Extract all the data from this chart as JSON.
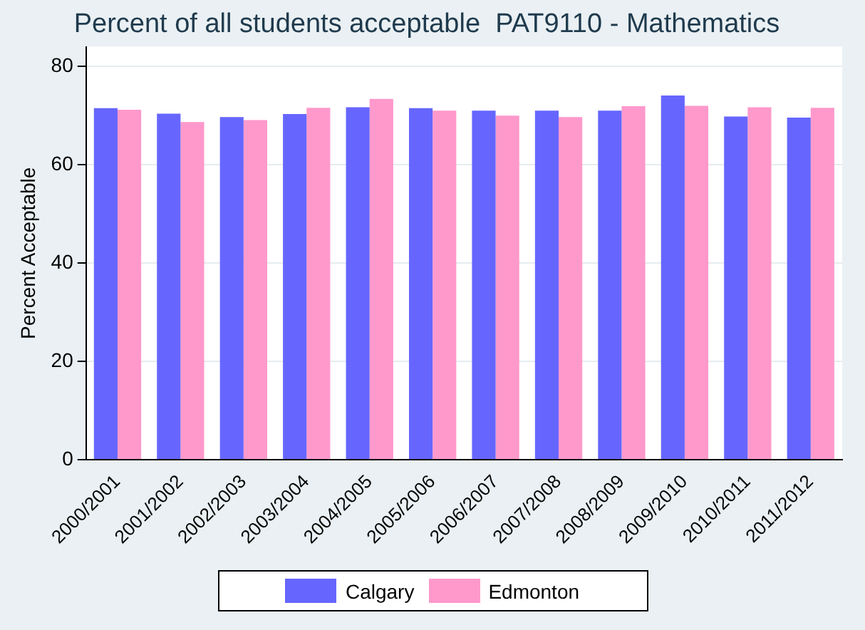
{
  "chart_data": {
    "type": "bar",
    "title": "Percent of all students acceptable  PAT9110 - Mathematics",
    "ylabel": "Percent Acceptable",
    "categories": [
      "2000/2001",
      "2001/2002",
      "2002/2003",
      "2003/2004",
      "2004/2005",
      "2005/2006",
      "2006/2007",
      "2007/2008",
      "2008/2009",
      "2009/2010",
      "2010/2011",
      "2011/2012"
    ],
    "series": [
      {
        "name": "Calgary",
        "color": "#6666ff",
        "values": [
          71.5,
          70.4,
          69.7,
          70.3,
          71.7,
          71.5,
          71.0,
          71.0,
          71.0,
          74.1,
          69.8,
          69.6
        ]
      },
      {
        "name": "Edmonton",
        "color": "#ff99cc",
        "values": [
          71.2,
          68.7,
          69.1,
          71.6,
          73.4,
          71.0,
          70.0,
          69.7,
          71.9,
          72.0,
          71.7,
          71.6
        ]
      }
    ],
    "ylim": [
      0,
      84
    ],
    "yticks": [
      0,
      20,
      40,
      60,
      80
    ],
    "grid": "y",
    "legend": "bottom"
  }
}
